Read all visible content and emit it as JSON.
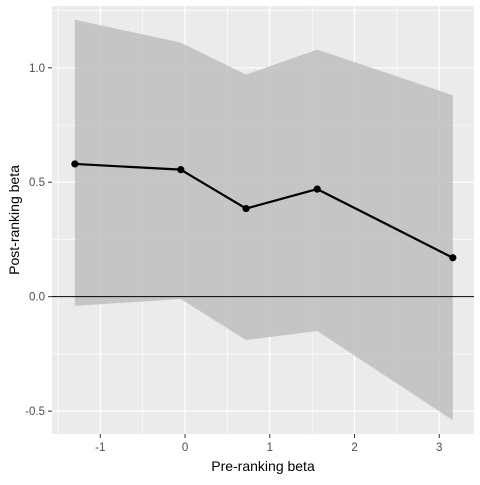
{
  "chart_data": {
    "type": "line",
    "xlabel": "Pre-ranking beta",
    "ylabel": "Post-ranking beta",
    "xlim": [
      -1.57,
      3.41
    ],
    "ylim": [
      -0.6,
      1.27
    ],
    "x_ticks": [
      -1,
      0,
      1,
      2,
      3
    ],
    "y_ticks": [
      -0.5,
      0.0,
      0.5,
      1.0
    ],
    "x_tick_labels": [
      "-1",
      "0",
      "1",
      "2",
      "3"
    ],
    "y_tick_labels": [
      "-0.5",
      "0.0",
      "0.5",
      "1.0"
    ],
    "grid": true,
    "reference_line_y": 0,
    "series": [
      {
        "x": [
          -1.3,
          -0.05,
          0.72,
          1.56,
          3.16
        ],
        "y": [
          0.58,
          0.555,
          0.385,
          0.47,
          0.17
        ],
        "ci_lower": [
          -0.04,
          -0.01,
          -0.19,
          -0.15,
          -0.54
        ],
        "ci_upper": [
          1.21,
          1.11,
          0.97,
          1.08,
          0.88
        ]
      }
    ],
    "colors": {
      "panel_background": "#EBEBEB",
      "grid": "#FFFFFF",
      "ribbon": "#BEBEBE",
      "line": "#000000",
      "axis_text": "#4D4D4D",
      "title_text": "#000000"
    }
  }
}
